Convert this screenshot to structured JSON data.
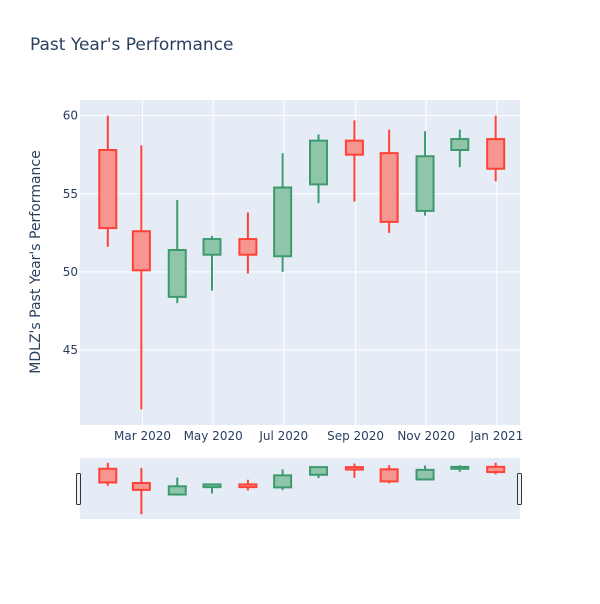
{
  "chart_data": {
    "type": "candlestick",
    "title": "Past Year's Performance",
    "ylabel": "MDLZ's Past Year's Performance",
    "xlabel": "",
    "ylim": [
      40.2,
      61.0
    ],
    "xlim": [
      "2020-01-07",
      "2021-01-21"
    ],
    "y_ticks": [
      45,
      50,
      55,
      60
    ],
    "x_ticks": [
      {
        "date": "2020-03-01",
        "label": "Mar 2020"
      },
      {
        "date": "2020-05-01",
        "label": "May 2020"
      },
      {
        "date": "2020-07-01",
        "label": "Jul 2020"
      },
      {
        "date": "2020-09-01",
        "label": "Sep 2020"
      },
      {
        "date": "2020-11-01",
        "label": "Nov 2020"
      },
      {
        "date": "2021-01-01",
        "label": "Jan 2021"
      }
    ],
    "grid": true,
    "legend": "none",
    "range_slider": true,
    "colors": {
      "increasing_line": "#3D9970",
      "increasing_fill": "#8fc5a9",
      "decreasing_line": "#FF4136",
      "decreasing_fill": "#f79590",
      "plot_bg": "#E5ECF6",
      "grid": "#ffffff",
      "text": "#2a3f5f"
    },
    "candles": [
      {
        "date": "2020-01-31",
        "open": 57.8,
        "high": 60.0,
        "low": 51.6,
        "close": 52.8
      },
      {
        "date": "2020-02-29",
        "open": 52.6,
        "high": 58.1,
        "low": 41.2,
        "close": 50.1
      },
      {
        "date": "2020-03-31",
        "open": 48.4,
        "high": 54.6,
        "low": 48.0,
        "close": 51.4
      },
      {
        "date": "2020-04-30",
        "open": 51.1,
        "high": 52.3,
        "low": 48.8,
        "close": 52.1
      },
      {
        "date": "2020-05-31",
        "open": 52.1,
        "high": 53.8,
        "low": 49.9,
        "close": 51.1
      },
      {
        "date": "2020-06-30",
        "open": 51.0,
        "high": 57.6,
        "low": 50.0,
        "close": 55.4
      },
      {
        "date": "2020-07-31",
        "open": 55.6,
        "high": 58.8,
        "low": 54.4,
        "close": 58.4
      },
      {
        "date": "2020-08-31",
        "open": 58.4,
        "high": 59.7,
        "low": 54.5,
        "close": 57.5
      },
      {
        "date": "2020-09-30",
        "open": 57.6,
        "high": 59.1,
        "low": 52.5,
        "close": 53.2
      },
      {
        "date": "2020-10-31",
        "open": 53.9,
        "high": 59.0,
        "low": 53.6,
        "close": 57.4
      },
      {
        "date": "2020-11-30",
        "open": 57.8,
        "high": 59.1,
        "low": 56.7,
        "close": 58.5
      },
      {
        "date": "2020-12-31",
        "open": 58.5,
        "high": 60.0,
        "low": 55.8,
        "close": 56.6
      }
    ]
  }
}
